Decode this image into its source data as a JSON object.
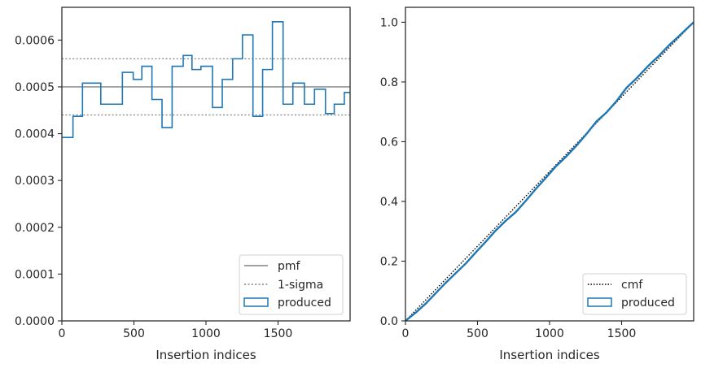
{
  "chart_data": [
    {
      "type": "histogram-step",
      "xlabel": "Insertion indices",
      "ylabel": "",
      "xlim": [
        0,
        2000
      ],
      "ylim": [
        0,
        0.00067
      ],
      "x_ticks": [
        0,
        500,
        1000,
        1500
      ],
      "x_tick_labels": [
        "0",
        "500",
        "1000",
        "1500"
      ],
      "y_ticks": [
        0,
        0.0001,
        0.0002,
        0.0003,
        0.0004,
        0.0005,
        0.0006
      ],
      "y_tick_labels": [
        "0.0000",
        "0.0001",
        "0.0002",
        "0.0003",
        "0.0004",
        "0.0005",
        "0.0006"
      ],
      "grid": false,
      "legend_position": "bottom-right",
      "pmf": {
        "name": "pmf",
        "value": 0.0005,
        "color": "#808080"
      },
      "sigma": {
        "name": "1-sigma",
        "values": [
          0.00044,
          0.00056
        ],
        "color": "#808080"
      },
      "series": [
        {
          "name": "produced",
          "color": "#1f77b4",
          "bin_edges": [
            0,
            77,
            143,
            270,
            420,
            495,
            555,
            625,
            695,
            765,
            842,
            903,
            965,
            1045,
            1113,
            1185,
            1253,
            1326,
            1393,
            1461,
            1535,
            1603,
            1683,
            1753,
            1829,
            1890,
            1960,
            2000
          ],
          "values": [
            0.000392,
            0.000437,
            0.000508,
            0.000463,
            0.000531,
            0.000516,
            0.000544,
            0.000473,
            0.000413,
            0.000544,
            0.000567,
            0.000537,
            0.000544,
            0.000456,
            0.000516,
            0.00056,
            0.000611,
            0.000437,
            0.000537,
            0.000639,
            0.000463,
            0.000508,
            0.000463,
            0.000495,
            0.000443,
            0.000463,
            0.000488
          ]
        }
      ]
    },
    {
      "type": "line",
      "xlabel": "Insertion indices",
      "ylabel": "",
      "xlim": [
        0,
        2000
      ],
      "ylim": [
        0,
        1.05
      ],
      "x_ticks": [
        0,
        500,
        1000,
        1500
      ],
      "x_tick_labels": [
        "0",
        "500",
        "1000",
        "1500"
      ],
      "y_ticks": [
        0,
        0.2,
        0.4,
        0.6,
        0.8,
        1.0
      ],
      "y_tick_labels": [
        "0.0",
        "0.2",
        "0.4",
        "0.6",
        "0.8",
        "1.0"
      ],
      "grid": false,
      "legend_position": "bottom-right",
      "series": [
        {
          "name": "cmf",
          "style": "dotted",
          "color": "#000000",
          "x": [
            0,
            2000
          ],
          "y": [
            0,
            1.0
          ]
        },
        {
          "name": "produced",
          "style": "solid",
          "color": "#1f77b4",
          "x": [
            0,
            77,
            143,
            270,
            420,
            495,
            555,
            625,
            695,
            765,
            842,
            903,
            965,
            1045,
            1113,
            1185,
            1253,
            1326,
            1393,
            1461,
            1535,
            1603,
            1683,
            1753,
            1829,
            1890,
            1960,
            2000
          ],
          "y": [
            0,
            0.03,
            0.059,
            0.123,
            0.193,
            0.233,
            0.264,
            0.302,
            0.335,
            0.364,
            0.406,
            0.441,
            0.474,
            0.518,
            0.549,
            0.586,
            0.624,
            0.668,
            0.697,
            0.734,
            0.781,
            0.812,
            0.853,
            0.885,
            0.923,
            0.95,
            0.982,
            1.0
          ]
        }
      ]
    }
  ]
}
